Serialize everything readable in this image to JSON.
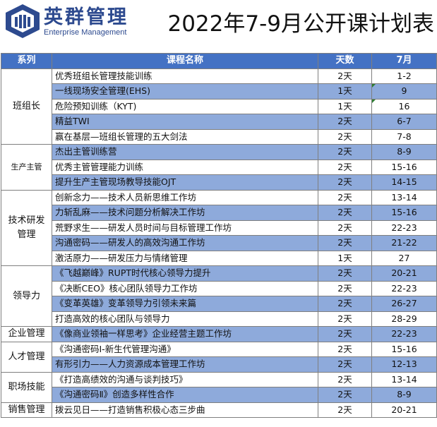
{
  "logo": {
    "cn": "英群管理",
    "en": "Enterprise Management"
  },
  "title": "2022年7-9月公开课计划表",
  "headers": {
    "category": "系列",
    "course": "课程名称",
    "days": "天数",
    "month": "7月"
  },
  "colors": {
    "header_bg": "#4472c4",
    "row_alt": "#8eaadb",
    "logo": "#2d4a8f"
  },
  "groups": [
    {
      "category": "班组长",
      "rows": [
        {
          "name": "优秀班组长管理技能训练",
          "days": "2天",
          "dates": "1-2"
        },
        {
          "name": "一线现场安全管理(EHS)",
          "days": "1天",
          "dates": "9"
        },
        {
          "name": "危险预知训练（KYT)",
          "days": "1天",
          "dates": "16"
        },
        {
          "name": "精益TWI",
          "days": "2天",
          "dates": "6-7"
        },
        {
          "name": "赢在基层—班组长管理的五大剑法",
          "days": "2天",
          "dates": "7-8"
        }
      ]
    },
    {
      "category": "生产主管",
      "rows": [
        {
          "name": "杰出主管训练营",
          "days": "2天",
          "dates": "8-9"
        },
        {
          "name": "优秀主管管理能力训练",
          "days": "2天",
          "dates": "15-16"
        },
        {
          "name": "提升生产主管现场教导技能OJT",
          "days": "2天",
          "dates": "14-15"
        }
      ]
    },
    {
      "category": "技术研发管理",
      "rows": [
        {
          "name": "创新念力——技术人员新思维工作坊",
          "days": "2天",
          "dates": "13-14"
        },
        {
          "name": "力斩乱麻——技术问题分析解决工作坊",
          "days": "2天",
          "dates": "15-16"
        },
        {
          "name": "荒野求生——研发人员时间与目标管理工作坊",
          "days": "2天",
          "dates": "22-23"
        },
        {
          "name": "沟通密码——研发人的高效沟通工作坊",
          "days": "2天",
          "dates": "21-22"
        },
        {
          "name": "激活原力——研发压力与情绪管理",
          "days": "1天",
          "dates": "27"
        }
      ]
    },
    {
      "category": "领导力",
      "rows": [
        {
          "name": "《飞越巅峰》RUPT时代核心领导力提升",
          "days": "2天",
          "dates": "20-21"
        },
        {
          "name": "《决断CEO》核心团队领导力工作坊",
          "days": "2天",
          "dates": "22-23"
        },
        {
          "name": "《变革英雄》变革领导力引领未来篇",
          "days": "2天",
          "dates": "26-27"
        },
        {
          "name": "打造高效的核心团队与领导力",
          "days": "2天",
          "dates": "28-29"
        }
      ]
    },
    {
      "category": "企业管理",
      "rows": [
        {
          "name": "《像商业领袖一样思考》企业经营主题工作坊",
          "days": "2天",
          "dates": "22-23"
        }
      ]
    },
    {
      "category": "人才管理",
      "rows": [
        {
          "name": "《沟通密码I-新生代管理沟通》",
          "days": "2天",
          "dates": "15-16"
        },
        {
          "name": "有形引力——人力资源成本管理工作坊",
          "days": "2天",
          "dates": "12-13"
        }
      ]
    },
    {
      "category": "职场技能",
      "rows": [
        {
          "name": "《打造高绩效的沟通与谈判技巧》",
          "days": "2天",
          "dates": "13-14"
        },
        {
          "name": "《沟通密码Ⅱ》创造多样性合作",
          "days": "2天",
          "dates": "8-9"
        }
      ]
    },
    {
      "category": "销售管理",
      "rows": [
        {
          "name": "拨云见日——打造销售积极心态三步曲",
          "days": "2天",
          "dates": "20-21"
        }
      ]
    }
  ]
}
